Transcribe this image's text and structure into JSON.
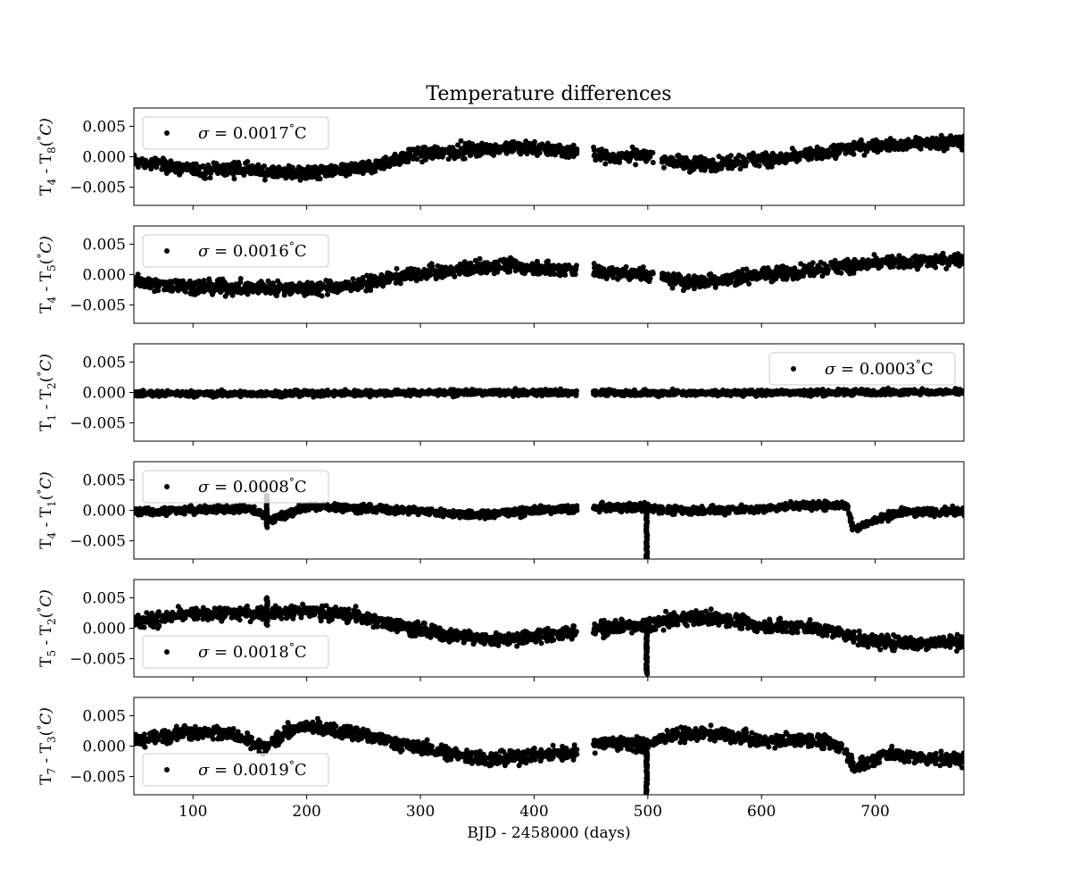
{
  "chart_data": {
    "type": "scatter",
    "title": "Temperature differences",
    "xlabel": "BJD - 2458000 (days)",
    "xlim": [
      48,
      778
    ],
    "xticks": [
      100,
      200,
      300,
      400,
      500,
      600,
      700
    ],
    "xtick_labels": [
      "100",
      "200",
      "300",
      "400",
      "500",
      "600",
      "700"
    ],
    "ylim": [
      -0.008,
      0.008
    ],
    "yticks": [
      -0.005,
      0.0,
      0.005
    ],
    "ytick_labels": [
      "−0.005",
      "0.000",
      "0.005"
    ],
    "marker_color": "#000000",
    "panels": [
      {
        "ylabel": "T₄ - T₈(°C)",
        "ylabel_parts": [
          "T",
          "4",
          " - T",
          "8",
          "(",
          "°",
          "C)"
        ],
        "legend": "σ = 0.0017°C",
        "legend_sigma": "σ",
        "legend_value": " = 0.0017",
        "legend_unit": "°C",
        "legend_position": "upper-left",
        "series": [
          {
            "x": 50,
            "y": -0.0008
          },
          {
            "x": 80,
            "y": -0.0017
          },
          {
            "x": 110,
            "y": -0.0023
          },
          {
            "x": 140,
            "y": -0.002
          },
          {
            "x": 170,
            "y": -0.0026
          },
          {
            "x": 200,
            "y": -0.0027
          },
          {
            "x": 230,
            "y": -0.0022
          },
          {
            "x": 260,
            "y": -0.0015
          },
          {
            "x": 290,
            "y": 0.0002
          },
          {
            "x": 320,
            "y": 0.0008
          },
          {
            "x": 350,
            "y": 0.0012
          },
          {
            "x": 380,
            "y": 0.0015
          },
          {
            "x": 410,
            "y": 0.0012
          },
          {
            "x": 440,
            "y": 0.0008
          },
          {
            "x": 470,
            "y": 0.0
          },
          {
            "x": 500,
            "y": 0.0002
          },
          {
            "x": 530,
            "y": -0.0013
          },
          {
            "x": 560,
            "y": -0.0012
          },
          {
            "x": 590,
            "y": -0.0005
          },
          {
            "x": 620,
            "y": -0.0003
          },
          {
            "x": 650,
            "y": 0.0006
          },
          {
            "x": 680,
            "y": 0.0015
          },
          {
            "x": 710,
            "y": 0.0018
          },
          {
            "x": 740,
            "y": 0.0022
          },
          {
            "x": 778,
            "y": 0.0025
          }
        ],
        "gaps": [
          [
            437,
            452
          ],
          [
            505,
            512
          ]
        ]
      },
      {
        "ylabel": "T₄ - T₅(°C)",
        "ylabel_parts": [
          "T",
          "4",
          " - T",
          "5",
          "(",
          "°",
          "C)"
        ],
        "legend": "σ = 0.0016°C",
        "legend_sigma": "σ",
        "legend_value": " = 0.0016",
        "legend_unit": "°C",
        "legend_position": "upper-left",
        "series": [
          {
            "x": 50,
            "y": -0.0012
          },
          {
            "x": 80,
            "y": -0.0018
          },
          {
            "x": 110,
            "y": -0.002
          },
          {
            "x": 140,
            "y": -0.0022
          },
          {
            "x": 170,
            "y": -0.0022
          },
          {
            "x": 200,
            "y": -0.0024
          },
          {
            "x": 230,
            "y": -0.002
          },
          {
            "x": 260,
            "y": -0.0012
          },
          {
            "x": 290,
            "y": 0.0
          },
          {
            "x": 320,
            "y": 0.0004
          },
          {
            "x": 350,
            "y": 0.0012
          },
          {
            "x": 380,
            "y": 0.0016
          },
          {
            "x": 410,
            "y": 0.001
          },
          {
            "x": 440,
            "y": 0.0008
          },
          {
            "x": 470,
            "y": 0.0002
          },
          {
            "x": 500,
            "y": 0.0
          },
          {
            "x": 530,
            "y": -0.0012
          },
          {
            "x": 560,
            "y": -0.001
          },
          {
            "x": 590,
            "y": -0.0002
          },
          {
            "x": 620,
            "y": 0.0002
          },
          {
            "x": 650,
            "y": 0.001
          },
          {
            "x": 680,
            "y": 0.0015
          },
          {
            "x": 710,
            "y": 0.002
          },
          {
            "x": 740,
            "y": 0.0022
          },
          {
            "x": 778,
            "y": 0.0024
          }
        ],
        "gaps": [
          [
            437,
            452
          ],
          [
            505,
            512
          ]
        ]
      },
      {
        "ylabel": "T₁ - T₂(°C)",
        "ylabel_parts": [
          "T",
          "1",
          " - T",
          "2",
          "(",
          "°",
          "C)"
        ],
        "legend": "σ = 0.0003°C",
        "legend_sigma": "σ",
        "legend_value": " = 0.0003",
        "legend_unit": "°C",
        "legend_position": "upper-right",
        "series": [
          {
            "x": 50,
            "y": -0.0002
          },
          {
            "x": 150,
            "y": -0.0002
          },
          {
            "x": 250,
            "y": -0.0001
          },
          {
            "x": 350,
            "y": 0.0
          },
          {
            "x": 450,
            "y": 0.0
          },
          {
            "x": 550,
            "y": -0.0001
          },
          {
            "x": 650,
            "y": 0.0
          },
          {
            "x": 778,
            "y": 0.0001
          }
        ],
        "gaps": [
          [
            437,
            452
          ]
        ]
      },
      {
        "ylabel": "T₄ - T₁(°C)",
        "ylabel_parts": [
          "T",
          "4",
          " - T",
          "1",
          "(",
          "°",
          "C)"
        ],
        "legend": "σ = 0.0008°C",
        "legend_sigma": "σ",
        "legend_value": " = 0.0008",
        "legend_unit": "°C",
        "legend_position": "upper-left",
        "series": [
          {
            "x": 50,
            "y": -0.0003
          },
          {
            "x": 100,
            "y": 0.0001
          },
          {
            "x": 150,
            "y": 0.0003
          },
          {
            "x": 170,
            "y": -0.0015
          },
          {
            "x": 200,
            "y": 0.0006
          },
          {
            "x": 250,
            "y": 0.0003
          },
          {
            "x": 300,
            "y": -0.0001
          },
          {
            "x": 350,
            "y": -0.0008
          },
          {
            "x": 400,
            "y": 0.0
          },
          {
            "x": 450,
            "y": 0.0004
          },
          {
            "x": 498,
            "y": 0.0005
          },
          {
            "x": 520,
            "y": 0.0
          },
          {
            "x": 600,
            "y": 0.0002
          },
          {
            "x": 630,
            "y": 0.0008
          },
          {
            "x": 675,
            "y": 0.0008
          },
          {
            "x": 680,
            "y": -0.003
          },
          {
            "x": 720,
            "y": -0.0003
          },
          {
            "x": 778,
            "y": -0.0002
          }
        ],
        "gaps": [
          [
            437,
            452
          ]
        ],
        "spikes": [
          {
            "x": 499,
            "ymin": -0.008,
            "ymax": 0.0005
          },
          {
            "x": 165,
            "ymin": -0.0028,
            "ymax": 0.0025
          }
        ]
      },
      {
        "ylabel": "T₅ - T₂(°C)",
        "ylabel_parts": [
          "T",
          "5",
          " - T",
          "2",
          "(",
          "°",
          "C)"
        ],
        "legend": "σ = 0.0018°C",
        "legend_sigma": "σ",
        "legend_value": " = 0.0018",
        "legend_unit": "°C",
        "legend_position": "lower-left",
        "series": [
          {
            "x": 50,
            "y": 0.001
          },
          {
            "x": 90,
            "y": 0.0022
          },
          {
            "x": 130,
            "y": 0.0025
          },
          {
            "x": 160,
            "y": 0.0024
          },
          {
            "x": 200,
            "y": 0.0028
          },
          {
            "x": 240,
            "y": 0.0022
          },
          {
            "x": 280,
            "y": 0.0005
          },
          {
            "x": 320,
            "y": -0.001
          },
          {
            "x": 360,
            "y": -0.0018
          },
          {
            "x": 400,
            "y": -0.0015
          },
          {
            "x": 430,
            "y": -0.0008
          },
          {
            "x": 455,
            "y": 0.0
          },
          {
            "x": 498,
            "y": 0.0005
          },
          {
            "x": 520,
            "y": 0.0015
          },
          {
            "x": 560,
            "y": 0.0018
          },
          {
            "x": 600,
            "y": 0.0005
          },
          {
            "x": 640,
            "y": 0.0002
          },
          {
            "x": 670,
            "y": -0.0008
          },
          {
            "x": 690,
            "y": -0.002
          },
          {
            "x": 730,
            "y": -0.0025
          },
          {
            "x": 778,
            "y": -0.0022
          }
        ],
        "gaps": [
          [
            437,
            452
          ]
        ],
        "spikes": [
          {
            "x": 499,
            "ymin": -0.0075,
            "ymax": 0.0005
          },
          {
            "x": 165,
            "ymin": 0.0005,
            "ymax": 0.005
          }
        ]
      },
      {
        "ylabel": "T₇ - T₃(°C)",
        "ylabel_parts": [
          "T",
          "7",
          " - T",
          "3",
          "(",
          "°",
          "C)"
        ],
        "legend": "σ = 0.0019°C",
        "legend_sigma": "σ",
        "legend_value": " = 0.0019",
        "legend_unit": "°C",
        "legend_position": "lower-left",
        "series": [
          {
            "x": 50,
            "y": 0.0008
          },
          {
            "x": 90,
            "y": 0.0022
          },
          {
            "x": 130,
            "y": 0.0022
          },
          {
            "x": 163,
            "y": -0.0005
          },
          {
            "x": 180,
            "y": 0.0022
          },
          {
            "x": 200,
            "y": 0.0032
          },
          {
            "x": 240,
            "y": 0.0022
          },
          {
            "x": 280,
            "y": 0.0005
          },
          {
            "x": 320,
            "y": -0.001
          },
          {
            "x": 360,
            "y": -0.0022
          },
          {
            "x": 400,
            "y": -0.0015
          },
          {
            "x": 435,
            "y": -0.001
          },
          {
            "x": 455,
            "y": 0.0005
          },
          {
            "x": 498,
            "y": 0.0002
          },
          {
            "x": 520,
            "y": 0.0018
          },
          {
            "x": 560,
            "y": 0.002
          },
          {
            "x": 600,
            "y": 0.0008
          },
          {
            "x": 640,
            "y": 0.0012
          },
          {
            "x": 670,
            "y": 0.0002
          },
          {
            "x": 682,
            "y": -0.0035
          },
          {
            "x": 710,
            "y": -0.0012
          },
          {
            "x": 740,
            "y": -0.002
          },
          {
            "x": 778,
            "y": -0.0022
          }
        ],
        "gaps": [
          [
            437,
            452
          ]
        ],
        "spikes": [
          {
            "x": 499,
            "ymin": -0.0078,
            "ymax": 0.0002
          }
        ]
      }
    ]
  }
}
